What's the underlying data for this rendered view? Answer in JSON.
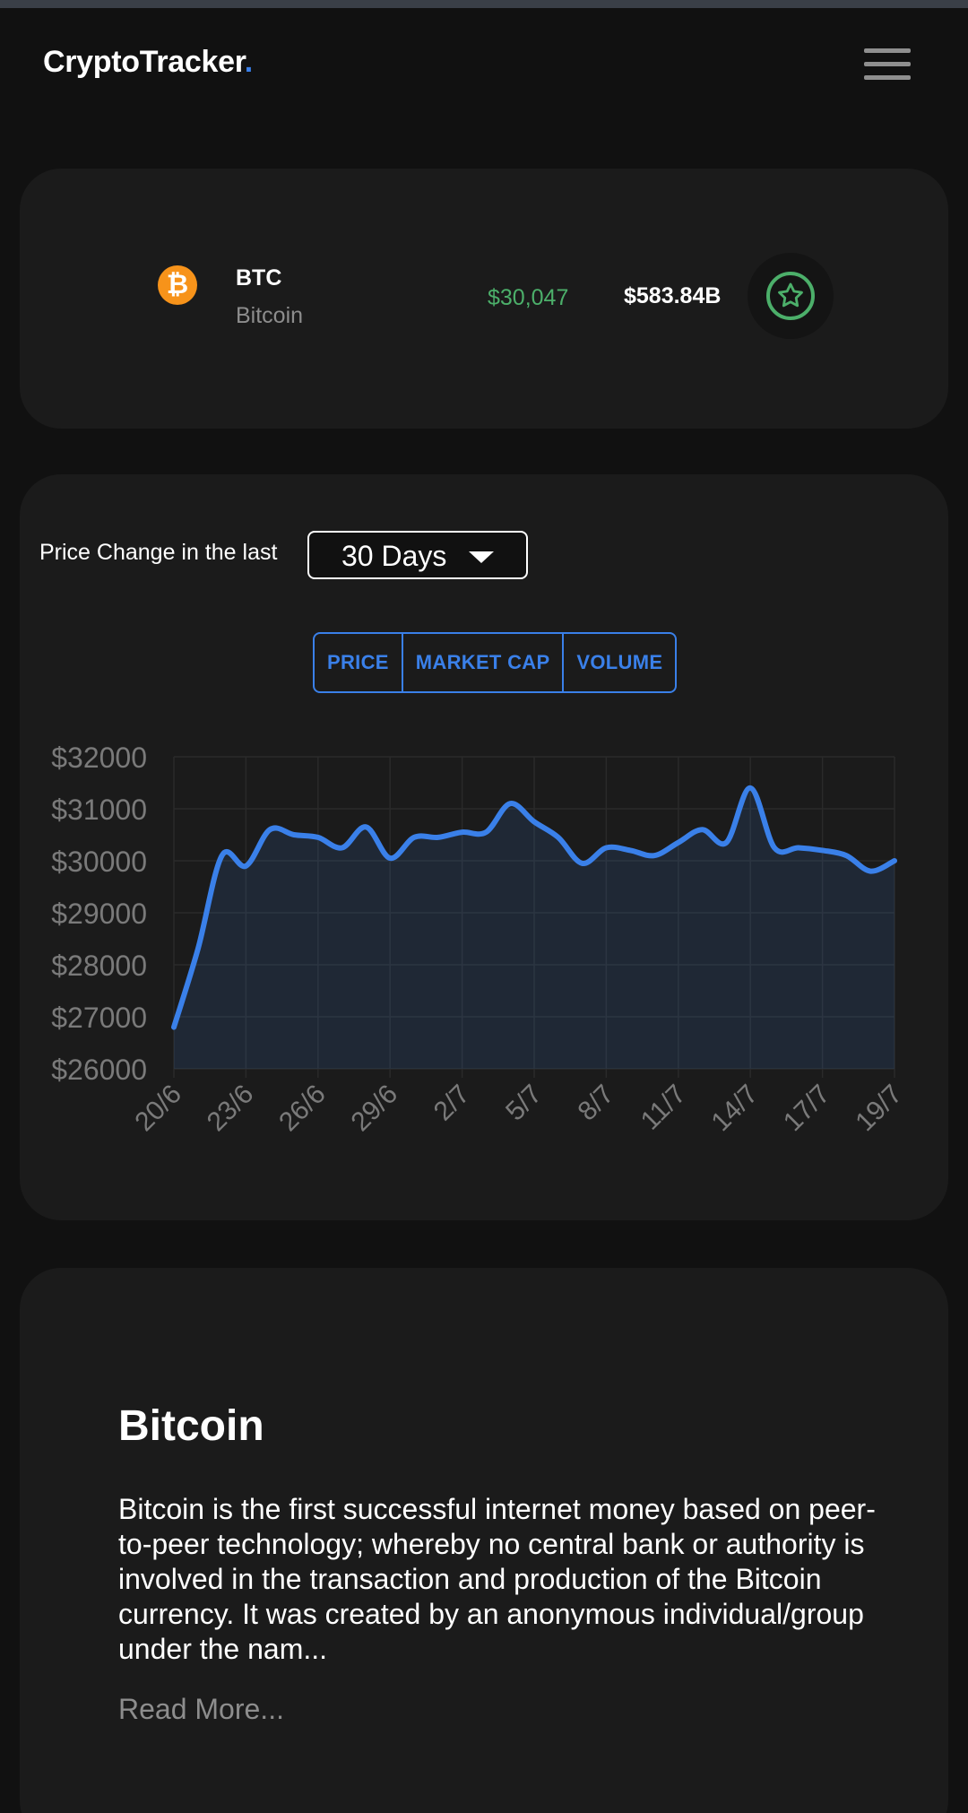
{
  "header": {
    "logo_text": "CryptoTracker",
    "logo_dot": ".",
    "menu_icon": "hamburger-menu-icon"
  },
  "coin": {
    "icon": "bitcoin-icon",
    "icon_glyph": "₿",
    "symbol": "BTC",
    "name": "Bitcoin",
    "price": "$30,047",
    "market_cap": "$583.84B",
    "favorite_icon": "star-icon"
  },
  "chart_section": {
    "range_label": "Price Change in the last",
    "range_value": "30 Days",
    "tabs": [
      "PRICE",
      "MARKET CAP",
      "VOLUME"
    ],
    "active_tab": "PRICE"
  },
  "colors": {
    "accent": "#3a80e9",
    "positive": "#4caf6a",
    "coin_orange": "#f7931a"
  },
  "chart_data": {
    "type": "area",
    "x_tick_labels": [
      "20/6",
      "23/6",
      "26/6",
      "29/6",
      "2/7",
      "5/7",
      "8/7",
      "11/7",
      "14/7",
      "17/7",
      "19/7"
    ],
    "y_tick_labels": [
      "$32000",
      "$31000",
      "$30000",
      "$29000",
      "$28000",
      "$27000",
      "$26000"
    ],
    "ylim": [
      26000,
      32000
    ],
    "grid": true,
    "series": [
      {
        "color": "#3a80e9",
        "values": [
          26800,
          28300,
          30100,
          29900,
          30600,
          30500,
          30450,
          30250,
          30650,
          30050,
          30450,
          30450,
          30550,
          30550,
          31100,
          30750,
          30450,
          29950,
          30250,
          30200,
          30100,
          30350,
          30600,
          30350,
          31400,
          30250,
          30250,
          30200,
          30100,
          29800,
          30000
        ]
      }
    ]
  },
  "about": {
    "title": "Bitcoin",
    "description": "Bitcoin is the first successful internet money based on peer-to-peer technology; whereby no central bank or authority is involved in the transaction and production of the Bitcoin currency. It was created by an anonymous individual/group under the nam...",
    "read_more": "Read More..."
  }
}
